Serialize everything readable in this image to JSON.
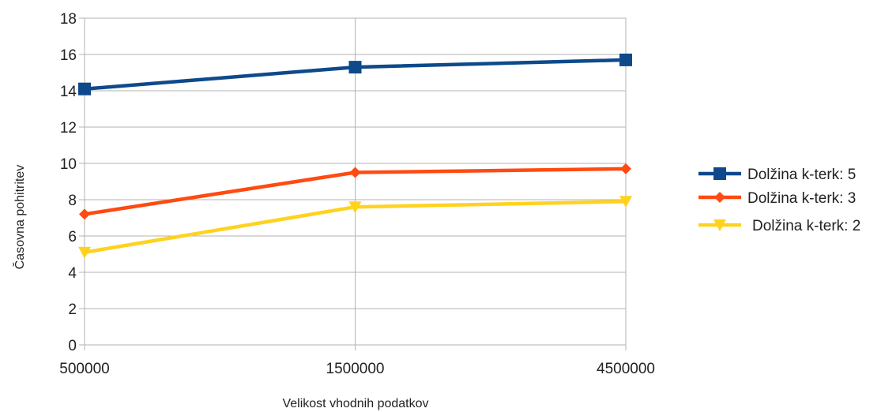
{
  "chart_data": {
    "type": "line",
    "title": "",
    "xlabel": "Velikost vhodnih podatkov",
    "ylabel": "Časovna pohitritev",
    "categories": [
      "500000",
      "1500000",
      "4500000"
    ],
    "ylim": [
      0,
      18
    ],
    "yticks": [
      0,
      2,
      4,
      6,
      8,
      10,
      12,
      14,
      16,
      18
    ],
    "grid": true,
    "legend_position": "right",
    "series": [
      {
        "name": "Dolžina k-terk: 5",
        "values": [
          14.1,
          15.3,
          15.7
        ],
        "color": "#0e4a8a",
        "marker": "square"
      },
      {
        "name": "Dolžina k-terk: 3",
        "values": [
          7.2,
          9.5,
          9.7
        ],
        "color": "#ff4a12",
        "marker": "diamond"
      },
      {
        "name": "Dolžina k-terk: 2",
        "values": [
          5.1,
          7.6,
          7.9
        ],
        "color": "#ffd21e",
        "marker": "triangle-down"
      }
    ]
  }
}
